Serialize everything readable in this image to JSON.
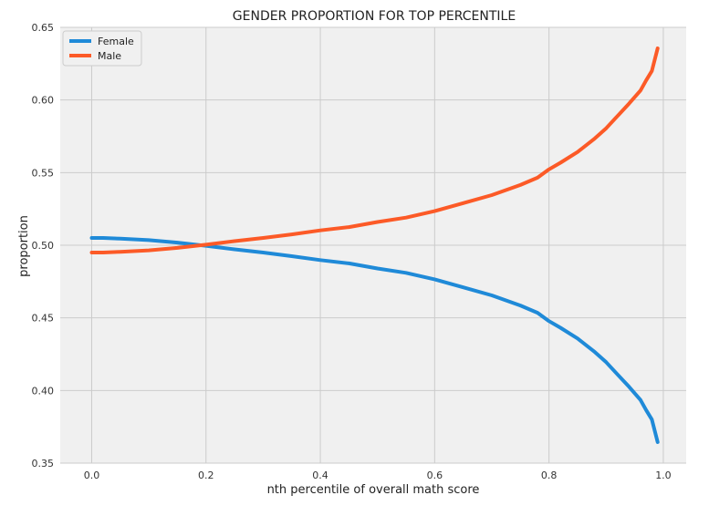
{
  "chart_data": {
    "type": "line",
    "title": "GENDER PROPORTION FOR TOP PERCENTILE",
    "xlabel": "nth percentile of overall math score",
    "ylabel": "proportion",
    "xlim": [
      -0.055,
      1.04
    ],
    "ylim": [
      0.35,
      0.65
    ],
    "x_ticks": [
      "0.0",
      "0.2",
      "0.4",
      "0.6",
      "0.8",
      "1.0"
    ],
    "y_ticks": [
      "0.35",
      "0.40",
      "0.45",
      "0.50",
      "0.55",
      "0.60",
      "0.65"
    ],
    "grid": true,
    "legend": "top-left",
    "x": [
      0.0,
      0.02,
      0.05,
      0.1,
      0.15,
      0.2,
      0.25,
      0.3,
      0.35,
      0.4,
      0.45,
      0.5,
      0.55,
      0.6,
      0.65,
      0.7,
      0.75,
      0.78,
      0.8,
      0.82,
      0.85,
      0.88,
      0.9,
      0.92,
      0.94,
      0.96,
      0.97,
      0.98,
      0.99
    ],
    "series": [
      {
        "name": "Female",
        "color": "#1f8ad8",
        "values": [
          0.505,
          0.505,
          0.5045,
          0.5035,
          0.5018,
          0.4996,
          0.4972,
          0.495,
          0.4925,
          0.4898,
          0.4875,
          0.484,
          0.481,
          0.4765,
          0.471,
          0.4655,
          0.4585,
          0.4535,
          0.4478,
          0.4432,
          0.4358,
          0.4265,
          0.4195,
          0.411,
          0.4025,
          0.3935,
          0.3865,
          0.38,
          0.3645
        ]
      },
      {
        "name": "Male",
        "color": "#fc5a27",
        "values": [
          0.495,
          0.495,
          0.4955,
          0.4965,
          0.4982,
          0.5004,
          0.5028,
          0.505,
          0.5075,
          0.5102,
          0.5125,
          0.516,
          0.519,
          0.5235,
          0.529,
          0.5345,
          0.5415,
          0.5465,
          0.5522,
          0.5568,
          0.5642,
          0.5735,
          0.5805,
          0.589,
          0.5975,
          0.6065,
          0.6135,
          0.62,
          0.6355
        ]
      }
    ]
  }
}
